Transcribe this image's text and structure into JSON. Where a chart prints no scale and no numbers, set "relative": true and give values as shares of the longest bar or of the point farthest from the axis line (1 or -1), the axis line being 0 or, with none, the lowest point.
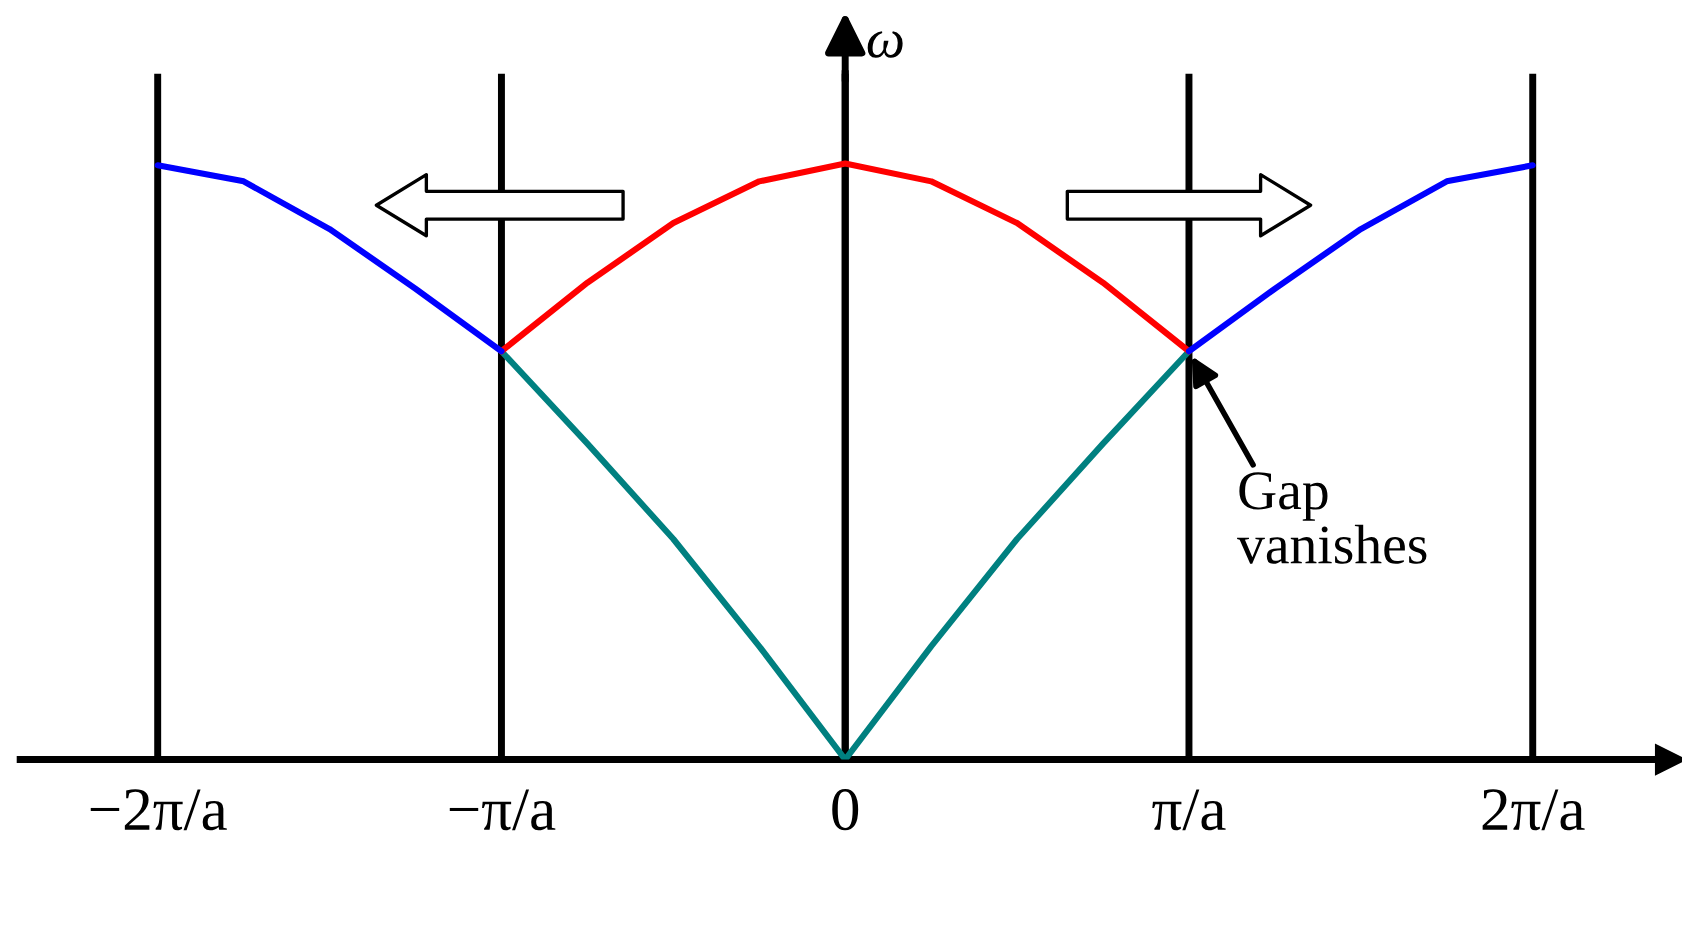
{
  "chart_data": {
    "type": "line",
    "relative": true,
    "ylabel": "ω",
    "xlim": [
      -2.4,
      2.4
    ],
    "xticks": [
      {
        "value": -2,
        "label": "−2π/a"
      },
      {
        "value": -1,
        "label": "−π/a"
      },
      0,
      {
        "value": 1,
        "label": "π/a"
      },
      {
        "value": 2,
        "label": "2π/a"
      }
    ],
    "series": [
      {
        "color": "#008080",
        "x": [
          -1,
          -0.75,
          -0.5,
          -0.25,
          0,
          0.25,
          0.5,
          0.75,
          1
        ],
        "values": [
          0.685,
          0.53,
          0.37,
          0.19,
          0,
          0.19,
          0.37,
          0.53,
          0.685
        ]
      },
      {
        "color": "#ff0000",
        "x": [
          -1,
          -0.75,
          -0.5,
          -0.25,
          0,
          0.25,
          0.5,
          0.75,
          1
        ],
        "values": [
          0.685,
          0.8,
          0.9,
          0.97,
          1,
          0.97,
          0.9,
          0.8,
          0.685
        ]
      },
      {
        "color": "#0000ff",
        "x": [
          -2,
          -1.75,
          -1.5,
          -1.25,
          -1
        ],
        "values": [
          0.997,
          0.97,
          0.89,
          0.79,
          0.685
        ]
      },
      {
        "color": "#0000ff",
        "x": [
          1,
          1.25,
          1.5,
          1.75,
          2
        ],
        "values": [
          0.685,
          0.79,
          0.89,
          0.97,
          0.997
        ]
      }
    ],
    "annotations": [
      {
        "text": "Gap\nvanishes",
        "x": 1,
        "y": 0.685
      }
    ],
    "grid": "x",
    "legend": false,
    "marker": "none",
    "line_style": "solid"
  }
}
